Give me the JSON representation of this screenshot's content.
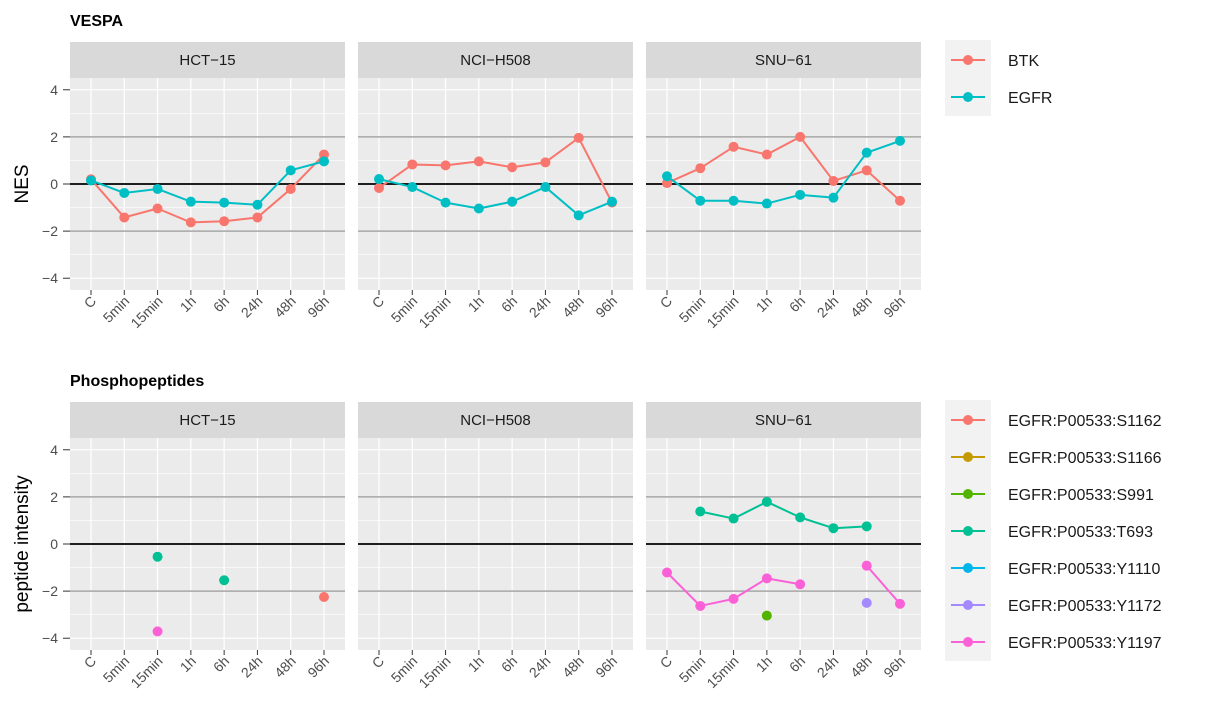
{
  "chart_data": [
    {
      "type": "line",
      "title": "VESPA",
      "ylabel": "NES",
      "xlabel": "",
      "ylim": [
        -4.5,
        4.5
      ],
      "yticks": [
        "-4",
        "-2",
        "0",
        "2",
        "4"
      ],
      "categories": [
        "C",
        "5min",
        "15min",
        "1h",
        "6h",
        "24h",
        "48h",
        "96h"
      ],
      "grid": true,
      "reference_lines": {
        "black": [
          0
        ],
        "gray": [
          -2,
          2
        ]
      },
      "legend_placement": "right",
      "panels": [
        {
          "label": "HCT−15",
          "series": [
            {
              "name": "BTK",
              "values": [
                0.2,
                -1.42,
                -1.04,
                -1.63,
                -1.58,
                -1.42,
                -0.21,
                1.25
              ]
            },
            {
              "name": "EGFR",
              "values": [
                0.15,
                -0.38,
                -0.21,
                -0.75,
                -0.79,
                -0.88,
                0.58,
                0.96
              ]
            }
          ]
        },
        {
          "label": "NCI−H508",
          "series": [
            {
              "name": "BTK",
              "values": [
                -0.17,
                0.83,
                0.79,
                0.96,
                0.71,
                0.92,
                1.96,
                -0.79
              ]
            },
            {
              "name": "EGFR",
              "values": [
                0.21,
                -0.13,
                -0.79,
                -1.04,
                -0.75,
                -0.13,
                -1.33,
                -0.75
              ]
            }
          ]
        },
        {
          "label": "SNU−61",
          "series": [
            {
              "name": "BTK",
              "values": [
                0.04,
                0.67,
                1.58,
                1.25,
                2.0,
                0.13,
                0.58,
                -0.71
              ]
            },
            {
              "name": "EGFR",
              "values": [
                0.33,
                -0.71,
                -0.71,
                -0.83,
                -0.46,
                -0.58,
                1.33,
                1.83
              ]
            }
          ]
        }
      ],
      "legend": [
        {
          "name": "BTK",
          "color": "#F8766D"
        },
        {
          "name": "EGFR",
          "color": "#00BFC4"
        }
      ]
    },
    {
      "type": "line",
      "title": "Phosphopeptides",
      "ylabel": "peptide intensity",
      "xlabel": "",
      "ylim": [
        -4.5,
        4.5
      ],
      "yticks": [
        "-4",
        "-2",
        "0",
        "2",
        "4"
      ],
      "categories": [
        "C",
        "5min",
        "15min",
        "1h",
        "6h",
        "24h",
        "48h",
        "96h"
      ],
      "grid": true,
      "reference_lines": {
        "black": [
          0
        ],
        "gray": [
          -2,
          2
        ]
      },
      "legend_placement": "right",
      "panels": [
        {
          "label": "HCT−15",
          "series": [
            {
              "name": "EGFR:P00533:S1162",
              "values": [
                null,
                null,
                null,
                null,
                null,
                null,
                null,
                -2.25
              ]
            },
            {
              "name": "EGFR:P00533:T693",
              "values": [
                null,
                null,
                -0.54,
                null,
                -1.54,
                null,
                null,
                null
              ]
            },
            {
              "name": "EGFR:P00533:Y1197",
              "values": [
                null,
                null,
                -3.71,
                null,
                null,
                null,
                null,
                null
              ]
            }
          ]
        },
        {
          "label": "NCI−H508",
          "series": []
        },
        {
          "label": "SNU−61",
          "series": [
            {
              "name": "EGFR:P00533:T693",
              "values": [
                null,
                1.38,
                1.08,
                1.79,
                1.13,
                0.67,
                0.75,
                null
              ]
            },
            {
              "name": "EGFR:P00533:Y1197",
              "values": [
                -1.21,
                -2.63,
                -2.33,
                -1.46,
                -1.71,
                null,
                -0.92,
                -2.54
              ]
            },
            {
              "name": "EGFR:P00533:S991",
              "values": [
                null,
                null,
                null,
                -3.04,
                null,
                null,
                null,
                null
              ]
            },
            {
              "name": "EGFR:P00533:Y1172",
              "values": [
                null,
                null,
                null,
                null,
                null,
                null,
                -2.5,
                null
              ]
            }
          ]
        }
      ],
      "legend": [
        {
          "name": "EGFR:P00533:S1162",
          "color": "#F8766D"
        },
        {
          "name": "EGFR:P00533:S1166",
          "color": "#C49A00"
        },
        {
          "name": "EGFR:P00533:S991",
          "color": "#53B400"
        },
        {
          "name": "EGFR:P00533:T693",
          "color": "#00C094"
        },
        {
          "name": "EGFR:P00533:Y1110",
          "color": "#00B6EB"
        },
        {
          "name": "EGFR:P00533:Y1172",
          "color": "#A58AFF"
        },
        {
          "name": "EGFR:P00533:Y1197",
          "color": "#FB61D7"
        }
      ]
    }
  ]
}
